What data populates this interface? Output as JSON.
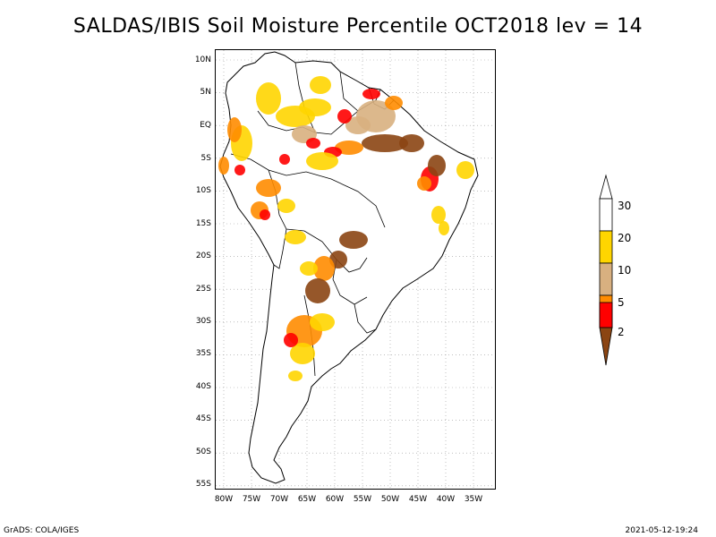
{
  "title": "SALDAS/IBIS Soil Moisture Percentile OCT2018 lev = 14",
  "lat_labels": [
    "10N",
    "5N",
    "EQ",
    "5S",
    "10S",
    "15S",
    "20S",
    "25S",
    "30S",
    "35S",
    "40S",
    "45S",
    "50S",
    "55S"
  ],
  "lon_labels": [
    "80W",
    "75W",
    "70W",
    "65W",
    "60W",
    "55W",
    "50W",
    "45W",
    "40W",
    "35W"
  ],
  "legend": {
    "labels": [
      "30",
      "20",
      "10",
      "5",
      "2"
    ],
    "colors": [
      "#ffffff",
      "#ffd500",
      "#d8b080",
      "#ff8c00",
      "#ff0000",
      "#8b4513"
    ]
  },
  "footer_left": "GrADS: COLA/IGES",
  "footer_right": "2021-05-12-19:24"
}
